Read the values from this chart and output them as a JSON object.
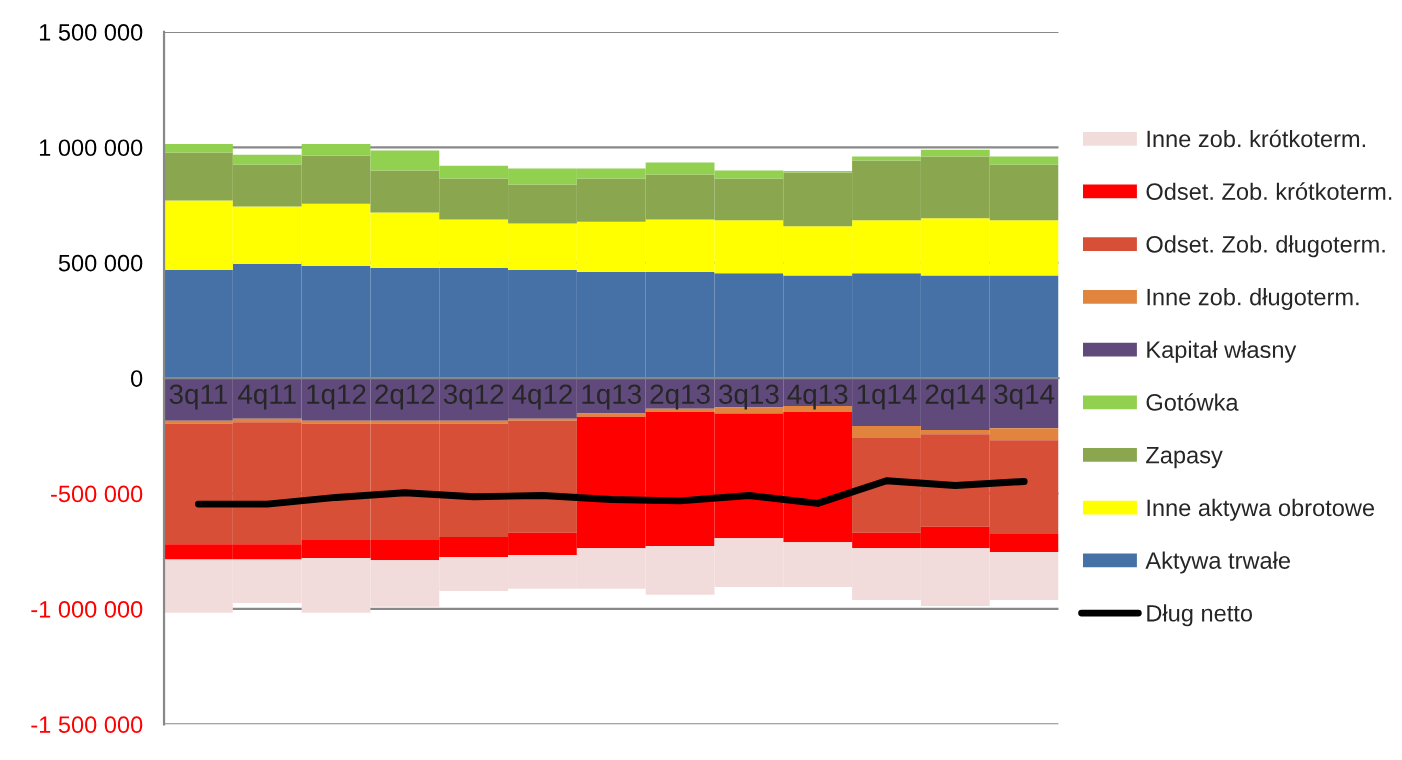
{
  "chart_data": {
    "type": "bar",
    "stacked": true,
    "categories": [
      "3q11",
      "4q11",
      "1q12",
      "2q12",
      "3q12",
      "4q12",
      "1q13",
      "2q13",
      "3q13",
      "4q13",
      "1q14",
      "2q14",
      "3q14"
    ],
    "series": [
      {
        "name": "Aktywa trwałe",
        "color": "#4671a6",
        "values": [
          468000,
          494000,
          486000,
          477000,
          477000,
          468000,
          460000,
          460000,
          454000,
          445000,
          454000,
          445000,
          445000
        ]
      },
      {
        "name": "Inne aktywa obrotowe",
        "color": "#ffff00",
        "values": [
          302000,
          250000,
          270000,
          241000,
          210000,
          202000,
          218000,
          227000,
          230000,
          213000,
          230000,
          248000,
          239000
        ]
      },
      {
        "name": "Zapasy",
        "color": "#8aa64f",
        "values": [
          207000,
          181000,
          207000,
          182000,
          178000,
          169000,
          187000,
          195000,
          181000,
          233000,
          259000,
          267000,
          241000
        ]
      },
      {
        "name": "Gotówka",
        "color": "#92d050",
        "values": [
          37000,
          43000,
          51000,
          86000,
          55000,
          69000,
          43000,
          52000,
          35000,
          6000,
          17000,
          29000,
          35000
        ]
      },
      {
        "name": "Kapitał własny",
        "color": "#604a7b",
        "values": [
          -185000,
          -176000,
          -185000,
          -185000,
          -185000,
          -176000,
          -153000,
          -133000,
          -127000,
          -121000,
          -208000,
          -225000,
          -217000
        ]
      },
      {
        "name": "Inne zob. długoterm.",
        "color": "#e0843e",
        "values": [
          -12000,
          -15000,
          -12000,
          -12000,
          -12000,
          -9000,
          -15000,
          -14000,
          -26000,
          -26000,
          -52000,
          -18000,
          -52000
        ]
      },
      {
        "name": "Odset. Zob. długoterm.",
        "color": "#d64f36",
        "values": [
          -523000,
          -529000,
          -505000,
          -505000,
          -491000,
          -485000,
          0,
          0,
          0,
          0,
          -410000,
          -401000,
          -407000
        ]
      },
      {
        "name": "Odset. Zob. krótkoterm.",
        "color": "#ff0000",
        "values": [
          -66000,
          -66000,
          -78000,
          -87000,
          -87000,
          -96000,
          -569000,
          -581000,
          -541000,
          -564000,
          -67000,
          -93000,
          -78000
        ]
      },
      {
        "name": "Inne zob. krótkoterm.",
        "color": "#f2dcdb",
        "values": [
          -231000,
          -188000,
          -237000,
          -202000,
          -147000,
          -147000,
          -176000,
          -211000,
          -211000,
          -194000,
          -225000,
          -251000,
          -208000
        ]
      },
      {
        "name": "Dług netto",
        "type": "line",
        "color": "#000000",
        "values": [
          -546000,
          -546000,
          -517000,
          -497000,
          -514000,
          -509000,
          -526000,
          -532000,
          -509000,
          -543000,
          -445000,
          -465000,
          -448000
        ]
      }
    ],
    "ylim": [
      -1500000,
      1500000
    ],
    "yticks": [
      {
        "value": -1500000,
        "label": "-1 500 000"
      },
      {
        "value": -1000000,
        "label": "-1 000 000"
      },
      {
        "value": -500000,
        "label": "-500 000"
      },
      0,
      {
        "value": 500000,
        "label": "500 000"
      },
      {
        "value": 1000000,
        "label": "1 000 000"
      },
      {
        "value": 1500000,
        "label": "1 500 000"
      }
    ],
    "grid": "y",
    "legend": "right",
    "marker": "none",
    "line_style": "solid"
  }
}
